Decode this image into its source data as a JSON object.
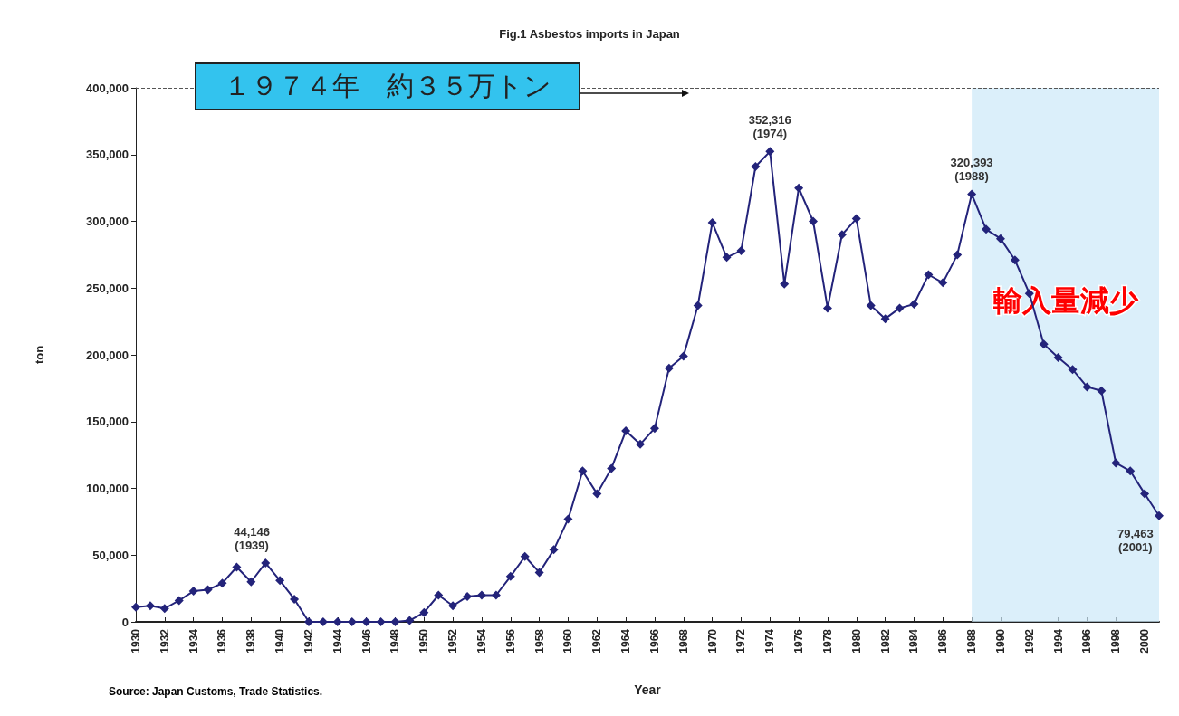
{
  "chart_data": {
    "type": "line",
    "title": "Fig.1 Asbestos imports in Japan",
    "xlabel": "Year",
    "ylabel": "ton",
    "x": [
      1930,
      1931,
      1932,
      1933,
      1934,
      1935,
      1936,
      1937,
      1938,
      1939,
      1940,
      1941,
      1942,
      1943,
      1944,
      1945,
      1946,
      1947,
      1948,
      1949,
      1950,
      1951,
      1952,
      1953,
      1954,
      1955,
      1956,
      1957,
      1958,
      1959,
      1960,
      1961,
      1962,
      1963,
      1964,
      1965,
      1966,
      1967,
      1968,
      1969,
      1970,
      1971,
      1972,
      1973,
      1974,
      1975,
      1976,
      1977,
      1978,
      1979,
      1980,
      1981,
      1982,
      1983,
      1984,
      1985,
      1986,
      1987,
      1988,
      1989,
      1990,
      1991,
      1992,
      1993,
      1994,
      1995,
      1996,
      1997,
      1998,
      1999,
      2000,
      2001
    ],
    "series": [
      {
        "color": "#23237a",
        "values": [
          11000,
          12000,
          10000,
          16000,
          23000,
          24000,
          29000,
          41000,
          30000,
          44146,
          31000,
          17000,
          0,
          0,
          0,
          0,
          0,
          0,
          0,
          1000,
          7000,
          20000,
          12000,
          19000,
          20000,
          20000,
          34000,
          49000,
          37000,
          54000,
          77000,
          113000,
          96000,
          115000,
          143000,
          133000,
          145000,
          190000,
          199000,
          237000,
          299000,
          273000,
          278000,
          341000,
          352316,
          253000,
          325000,
          300000,
          235000,
          290000,
          302000,
          237000,
          227000,
          235000,
          238000,
          260000,
          254000,
          275000,
          320393,
          294000,
          287000,
          271000,
          246000,
          208000,
          198000,
          189000,
          176000,
          173000,
          119000,
          113000,
          96000,
          79463
        ]
      }
    ],
    "xlim": [
      1930,
      2001
    ],
    "xticks": [
      1930,
      1932,
      1934,
      1936,
      1938,
      1940,
      1942,
      1944,
      1946,
      1948,
      1950,
      1952,
      1954,
      1956,
      1958,
      1960,
      1962,
      1964,
      1966,
      1968,
      1970,
      1972,
      1974,
      1976,
      1978,
      1980,
      1982,
      1984,
      1986,
      1988,
      1990,
      1992,
      1994,
      1996,
      1998,
      2000
    ],
    "ylim": [
      0,
      400000
    ],
    "yticks": [
      0,
      {
        "value": 50000,
        "label": "50,000"
      },
      {
        "value": 100000,
        "label": "100,000"
      },
      {
        "value": 150000,
        "label": "150,000"
      },
      {
        "value": 200000,
        "label": "200,000"
      },
      {
        "value": 250000,
        "label": "250,000"
      },
      {
        "value": 300000,
        "label": "300,000"
      },
      {
        "value": 350000,
        "label": "350,000"
      },
      {
        "value": 400000,
        "label": "400,000"
      }
    ],
    "marker": "diamond",
    "line_style": "solid",
    "grid": false,
    "ref_lines": [
      {
        "axis": "y",
        "value": 400000,
        "line_style": "dashed",
        "color": "#555555"
      }
    ],
    "bands": [
      {
        "axis": "x",
        "from": 1988,
        "to": 2001,
        "label": "輸入量減少",
        "color": "#cce8f8"
      }
    ],
    "annotations": [
      {
        "text": "44,146\n(1939)",
        "x": 1939,
        "y": 44146
      },
      {
        "text": "352,316\n(1974)",
        "x": 1974,
        "y": 352316
      },
      {
        "text": "320,393\n(1988)",
        "x": 1988,
        "y": 320393
      },
      {
        "text": "79,463\n(2001)",
        "x": 2001,
        "y": 79463
      },
      "１９７４年　約３５万トン",
      "Source: Japan Customs, Trade Statistics."
    ]
  }
}
